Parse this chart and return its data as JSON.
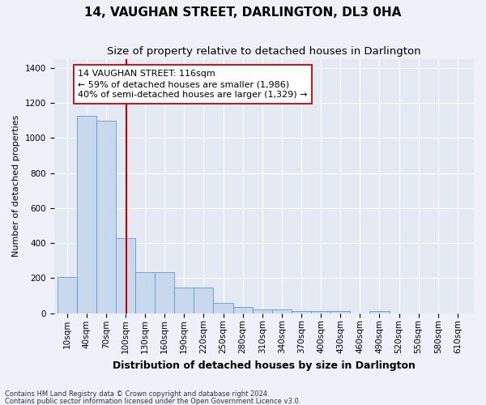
{
  "title": "14, VAUGHAN STREET, DARLINGTON, DL3 0HA",
  "subtitle": "Size of property relative to detached houses in Darlington",
  "xlabel": "Distribution of detached houses by size in Darlington",
  "ylabel": "Number of detached properties",
  "footnote1": "Contains HM Land Registry data © Crown copyright and database right 2024.",
  "footnote2": "Contains public sector information licensed under the Open Government Licence v3.0.",
  "annotation_line1": "14 VAUGHAN STREET: 116sqm",
  "annotation_line2": "← 59% of detached houses are smaller (1,986)",
  "annotation_line3": "40% of semi-detached houses are larger (1,329) →",
  "bar_color": "#c8d8ed",
  "bar_edge_color": "#6699cc",
  "red_line_x": 116,
  "bin_starts": [
    10,
    40,
    70,
    100,
    130,
    160,
    190,
    220,
    250,
    280,
    310,
    340,
    370,
    400,
    430,
    460,
    490,
    520,
    550,
    580,
    610
  ],
  "values": [
    205,
    1125,
    1100,
    430,
    235,
    235,
    145,
    145,
    60,
    35,
    20,
    20,
    10,
    10,
    10,
    0,
    10,
    0,
    0,
    0,
    0
  ],
  "bin_width": 30,
  "ylim": [
    0,
    1450
  ],
  "yticks": [
    0,
    200,
    400,
    600,
    800,
    1000,
    1200,
    1400
  ],
  "background_color": "#eef2f8",
  "plot_background": "#e4eaf4",
  "grid_color": "#ffffff",
  "title_fontsize": 11,
  "subtitle_fontsize": 9.5,
  "ylabel_fontsize": 8,
  "xlabel_fontsize": 9,
  "tick_fontsize": 7.5,
  "annot_fontsize": 8
}
